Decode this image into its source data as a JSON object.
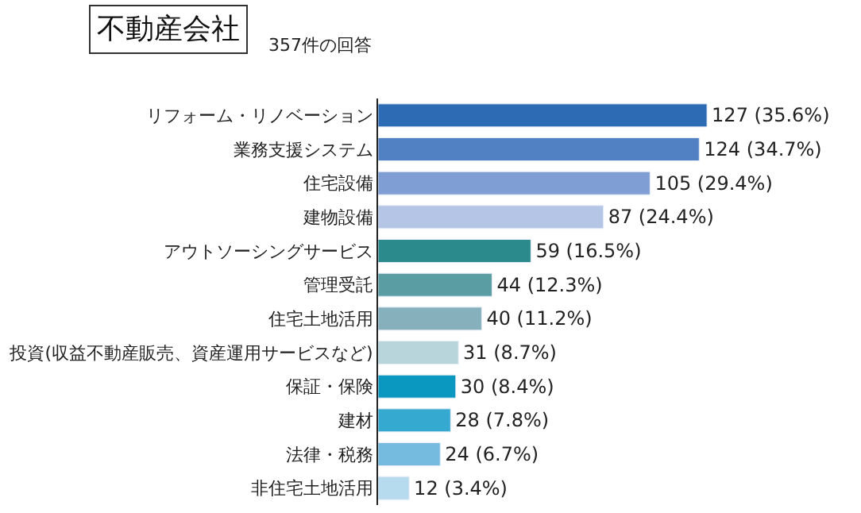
{
  "chart_data": {
    "type": "bar",
    "orientation": "horizontal",
    "title": "不動産会社",
    "subtitle": "357件の回答",
    "categories": [
      "リフォーム・リノベーション",
      "業務支援システム",
      "住宅設備",
      "建物設備",
      "アウトソーシングサービス",
      "管理受託",
      "住宅土地活用",
      "投資(収益不動産販売、資産運用サービスなど)",
      "保証・保険",
      "建材",
      "法律・税務",
      "非住宅土地活用"
    ],
    "values": [
      127,
      124,
      105,
      87,
      59,
      44,
      40,
      31,
      30,
      28,
      24,
      12
    ],
    "colors": [
      "#2e6bb5",
      "#5181c3",
      "#7f9ed3",
      "#b5c5e6",
      "#2a8a8c",
      "#5a9ea3",
      "#86b1bc",
      "#b9d5dc",
      "#0a98c0",
      "#35a9cf",
      "#74bbdf",
      "#b7dbee"
    ],
    "value_labels": [
      "127 (35.6%)",
      "124 (34.7%)",
      "105 (29.4%)",
      "87 (24.4%)",
      "59 (16.5%)",
      "44 (12.3%)",
      "40 (11.2%)",
      "31 (8.7%)",
      "30 (8.4%)",
      "28 (7.8%)",
      "24 (6.7%)",
      "12 (3.4%)"
    ],
    "legend": false
  }
}
